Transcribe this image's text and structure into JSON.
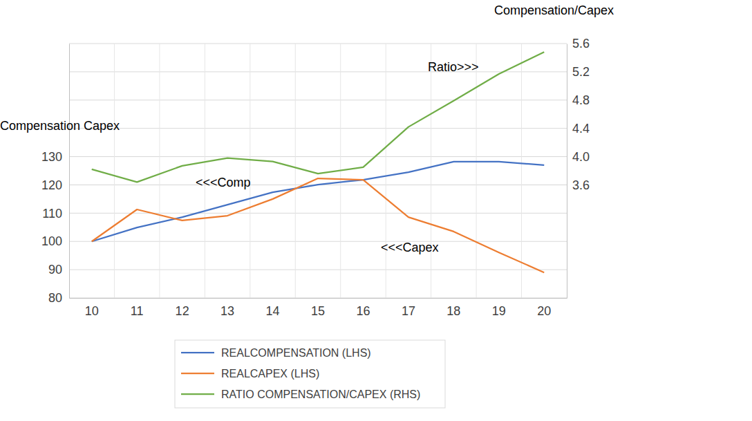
{
  "chart_data": {
    "type": "line",
    "y_label": "Compensation Capex",
    "y2_label": "Compensation/Capex",
    "annotations": [
      "<<<Comp",
      "<<<Capex",
      "Ratio>>>"
    ],
    "categories": [
      "10",
      "11",
      "12",
      "13",
      "14",
      "15",
      "16",
      "17",
      "18",
      "19",
      "20"
    ],
    "series": [
      {
        "name": "REALCOMPENSATION (LHS)",
        "color": "#4472c4",
        "axis": "y",
        "values": [
          100,
          104.9,
          108.6,
          113,
          117.4,
          120.1,
          121.8,
          124.5,
          128.2,
          128.2,
          127
        ]
      },
      {
        "name": "REALCAPEX (LHS)",
        "color": "#ed7d31",
        "axis": "y",
        "values": [
          100,
          111.3,
          107.4,
          109.1,
          115,
          122.3,
          121.8,
          108.6,
          103.5,
          96.1,
          89
        ]
      },
      {
        "name": "RATIO COMPENSATION/CAPEX (RHS)",
        "color": "#70ad47",
        "axis": "y2",
        "values": [
          3.82,
          3.64,
          3.87,
          3.98,
          3.93,
          3.76,
          3.85,
          4.42,
          4.79,
          5.17,
          5.48
        ]
      }
    ],
    "ylim": [
      80,
      170
    ],
    "yticks": [
      80,
      90,
      100,
      110,
      120,
      130
    ],
    "y2lim": [
      2.0,
      5.6
    ],
    "y2ticks": [
      3.6,
      {
        "value": 4,
        "label": "4.0"
      },
      4.4,
      4.8,
      5.2,
      5.6
    ],
    "grid": true,
    "legend": "bottom"
  }
}
